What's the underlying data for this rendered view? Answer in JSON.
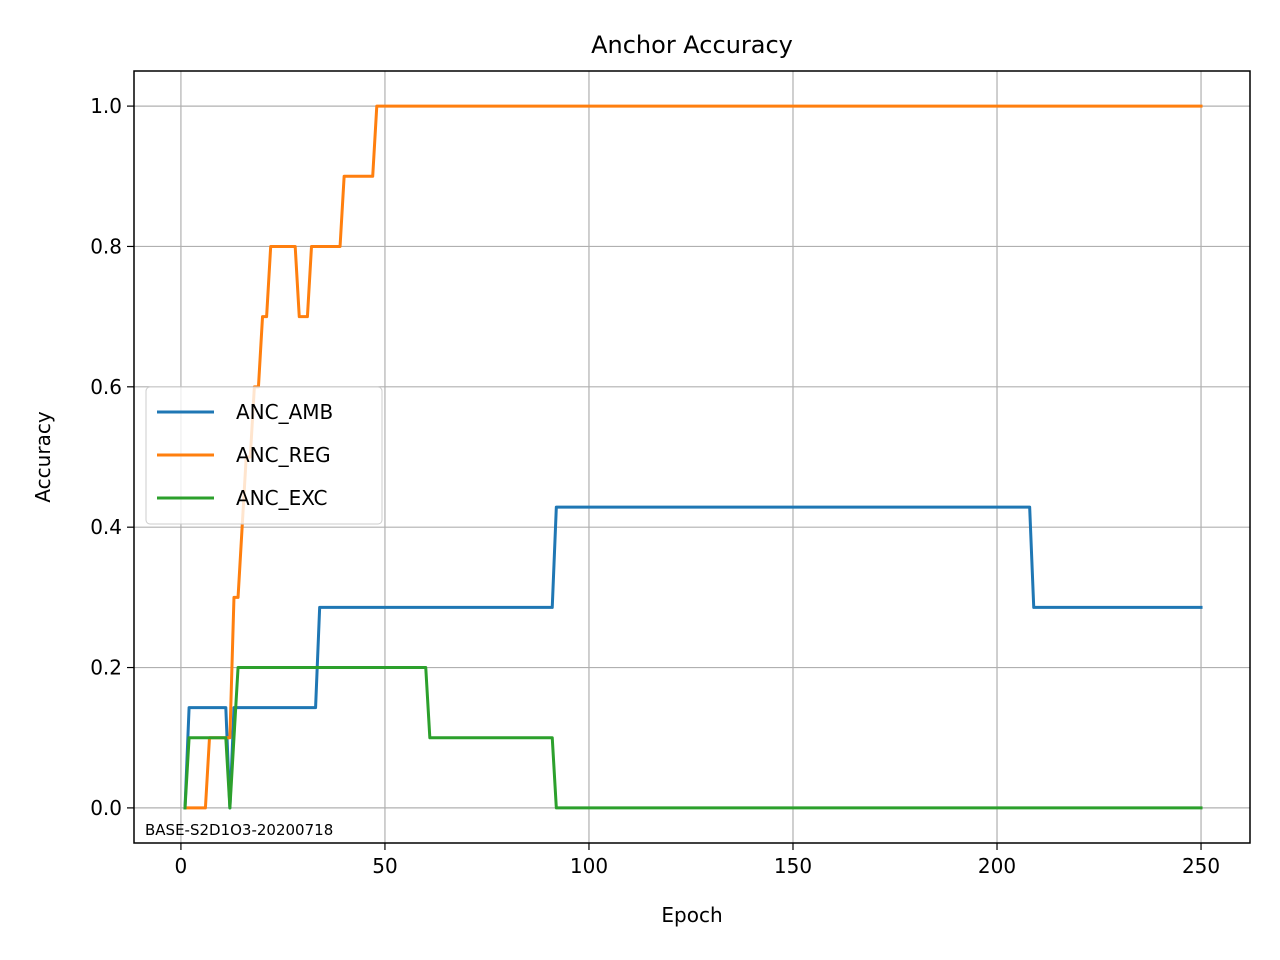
{
  "chart_data": {
    "type": "line",
    "title": "Anchor Accuracy",
    "xlabel": "Epoch",
    "ylabel": "Accuracy",
    "annotation": "BASE-S2D1O3-20200718",
    "xlim": [
      -11.5,
      262
    ],
    "ylim": [
      -0.05,
      1.05
    ],
    "xticks": [
      0,
      50,
      100,
      150,
      200,
      250
    ],
    "xtick_labels": [
      "0",
      "50",
      "100",
      "150",
      "200",
      "250"
    ],
    "yticks": [
      0.0,
      0.2,
      0.4,
      0.6,
      0.8,
      1.0
    ],
    "ytick_labels": [
      "0.0",
      "0.2",
      "0.4",
      "0.6",
      "0.8",
      "1.0"
    ],
    "grid": true,
    "legend_position": "center-left",
    "series": [
      {
        "name": "ANC_AMB",
        "color": "#1f77b4",
        "points": [
          [
            1,
            0
          ],
          [
            2,
            0.1429
          ],
          [
            11,
            0.1429
          ],
          [
            12,
            0
          ],
          [
            13,
            0.1429
          ],
          [
            33,
            0.1429
          ],
          [
            34,
            0.2857
          ],
          [
            91,
            0.2857
          ],
          [
            92,
            0.4286
          ],
          [
            208,
            0.4286
          ],
          [
            209,
            0.2857
          ],
          [
            250,
            0.2857
          ]
        ]
      },
      {
        "name": "ANC_REG",
        "color": "#ff7f0e",
        "points": [
          [
            1,
            0
          ],
          [
            6,
            0
          ],
          [
            7,
            0.1
          ],
          [
            11,
            0.1
          ],
          [
            12,
            0.1
          ],
          [
            13,
            0.3
          ],
          [
            14,
            0.3
          ],
          [
            15,
            0.4
          ],
          [
            16,
            0.5
          ],
          [
            17,
            0.5
          ],
          [
            18,
            0.6
          ],
          [
            19,
            0.6
          ],
          [
            20,
            0.7
          ],
          [
            21,
            0.7
          ],
          [
            22,
            0.8
          ],
          [
            28,
            0.8
          ],
          [
            29,
            0.7
          ],
          [
            31,
            0.7
          ],
          [
            32,
            0.8
          ],
          [
            39,
            0.8
          ],
          [
            40,
            0.9
          ],
          [
            47,
            0.9
          ],
          [
            48,
            1.0
          ],
          [
            250,
            1.0
          ]
        ]
      },
      {
        "name": "ANC_EXC",
        "color": "#2ca02c",
        "points": [
          [
            1,
            0
          ],
          [
            2,
            0.1
          ],
          [
            11,
            0.1
          ],
          [
            12,
            0
          ],
          [
            13,
            0.1
          ],
          [
            14,
            0.2
          ],
          [
            60,
            0.2
          ],
          [
            61,
            0.1
          ],
          [
            91,
            0.1
          ],
          [
            92,
            0
          ],
          [
            250,
            0
          ]
        ]
      }
    ]
  }
}
